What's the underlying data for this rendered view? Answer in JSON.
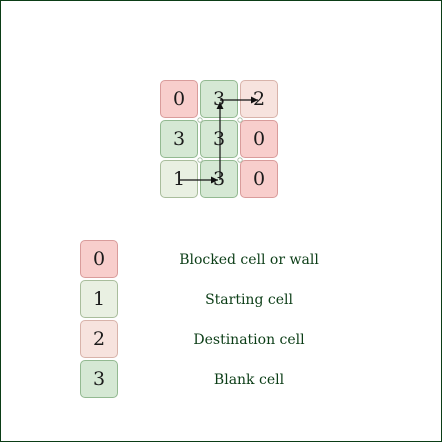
{
  "grid": {
    "rows": [
      [
        "0",
        "3",
        "2"
      ],
      [
        "3",
        "3",
        "0"
      ],
      [
        "1",
        "3",
        "0"
      ]
    ]
  },
  "legend": [
    {
      "value": "0",
      "label": "Blocked cell or wall"
    },
    {
      "value": "1",
      "label": "Starting cell"
    },
    {
      "value": "2",
      "label": "Destination cell"
    },
    {
      "value": "3",
      "label": "Blank cell"
    }
  ],
  "colors": {
    "blocked": "#f8cecc",
    "start": "#e9f0e2",
    "destination": "#f7e3de",
    "blank": "#d5e8d4",
    "frame": "#0b3d16"
  }
}
